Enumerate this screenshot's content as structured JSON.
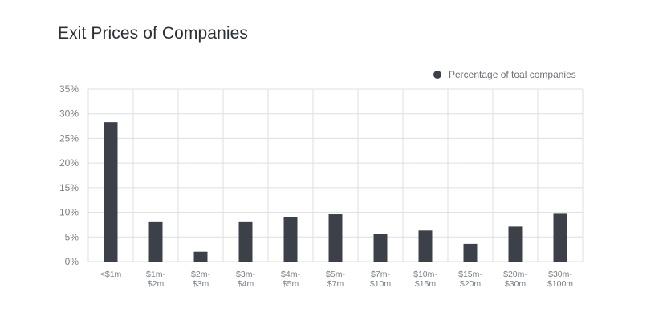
{
  "chart_data": {
    "type": "bar",
    "title": "Exit Prices of Companies",
    "categories": [
      [
        "<$1m"
      ],
      [
        "$1m-",
        "$2m"
      ],
      [
        "$2m-",
        "$3m"
      ],
      [
        "$3m-",
        "$4m"
      ],
      [
        "$4m-",
        "$5m"
      ],
      [
        "$5m-",
        "$7m"
      ],
      [
        "$7m-",
        "$10m"
      ],
      [
        "$10m-",
        "$15m"
      ],
      [
        "$15m-",
        "$20m"
      ],
      [
        "$20m-",
        "$30m"
      ],
      [
        "$30m-",
        "$100m"
      ]
    ],
    "series": [
      {
        "name": "Percentage of toal companies",
        "color": "#3c4149",
        "values": [
          28.3,
          8.0,
          2.0,
          8.0,
          9.0,
          9.6,
          5.6,
          6.3,
          3.6,
          7.1,
          9.7
        ]
      }
    ],
    "yticks": [
      "0%",
      "5%",
      "10%",
      "15%",
      "20%",
      "25%",
      "30%",
      "35%"
    ],
    "ylim": [
      0,
      35
    ],
    "grid": true,
    "legend_position": "top-right"
  }
}
